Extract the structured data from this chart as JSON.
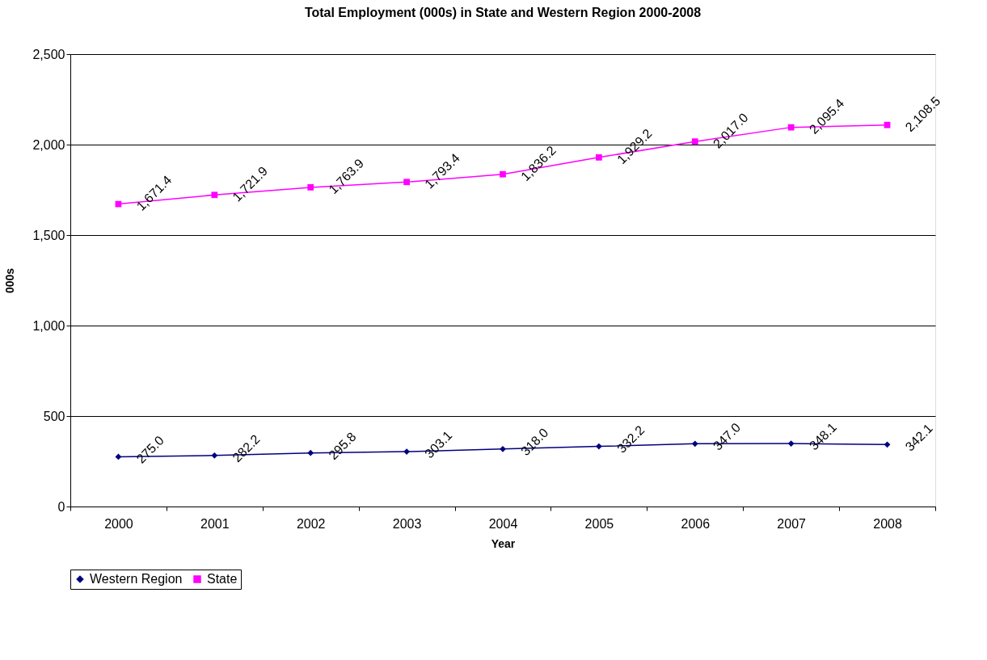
{
  "chart_data": {
    "type": "line",
    "title": "Total Employment (000s)  in State and Western Region 2000-2008",
    "xlabel": "Year",
    "ylabel": "000s",
    "categories": [
      "2000",
      "2001",
      "2002",
      "2003",
      "2004",
      "2005",
      "2006",
      "2007",
      "2008"
    ],
    "series": [
      {
        "name": "Western Region",
        "color": "#000080",
        "marker": "diamond",
        "line_style": "solid",
        "values": [
          275.0,
          282.2,
          295.8,
          303.1,
          318.0,
          332.2,
          347.0,
          348.1,
          342.1
        ],
        "value_labels": [
          "275.0",
          "282.2",
          "295.8",
          "303.1",
          "318.0",
          "332.2",
          "347.0",
          "348.1",
          "342.1"
        ]
      },
      {
        "name": "State",
        "color": "#ff00ff",
        "marker": "square",
        "line_style": "solid",
        "values": [
          1671.4,
          1721.9,
          1763.9,
          1793.4,
          1836.2,
          1929.2,
          2017.0,
          2095.4,
          2108.5
        ],
        "value_labels": [
          "1,671.4",
          "1,721.9",
          "1,763.9",
          "1,793.4",
          "1,836.2",
          "1,929.2",
          "2,017.0",
          "2,095.4",
          "2,108.5"
        ]
      }
    ],
    "ylim": [
      0,
      2500
    ],
    "yticks": [
      0,
      500,
      {
        "value": 1000,
        "label": "1,000"
      },
      {
        "value": 1500,
        "label": "1,500"
      },
      {
        "value": 2000,
        "label": "2,000"
      },
      {
        "value": 2500,
        "label": "2,500"
      }
    ],
    "grid": "y",
    "legend": "bottom"
  }
}
